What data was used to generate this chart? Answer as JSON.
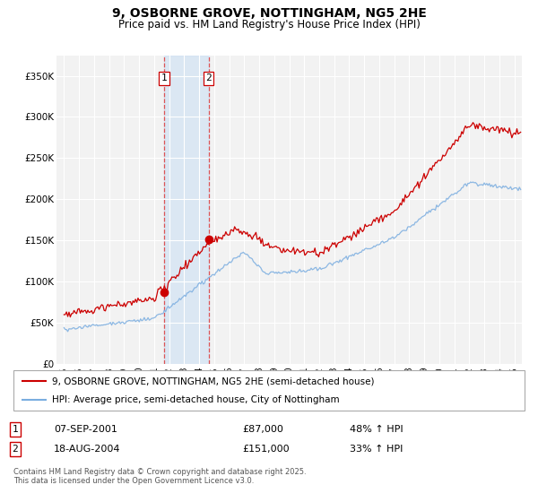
{
  "title": "9, OSBORNE GROVE, NOTTINGHAM, NG5 2HE",
  "subtitle": "Price paid vs. HM Land Registry's House Price Index (HPI)",
  "legend_line1": "9, OSBORNE GROVE, NOTTINGHAM, NG5 2HE (semi-detached house)",
  "legend_line2": "HPI: Average price, semi-detached house, City of Nottingham",
  "transaction1_label": "1",
  "transaction1_date": "07-SEP-2001",
  "transaction1_price": "£87,000",
  "transaction1_hpi": "48% ↑ HPI",
  "transaction2_label": "2",
  "transaction2_date": "18-AUG-2004",
  "transaction2_price": "£151,000",
  "transaction2_hpi": "33% ↑ HPI",
  "footer": "Contains HM Land Registry data © Crown copyright and database right 2025.\nThis data is licensed under the Open Government Licence v3.0.",
  "hpi_color": "#7aade0",
  "price_color": "#cc0000",
  "transaction1_x": 2001.67,
  "transaction1_y": 87000,
  "transaction2_x": 2004.63,
  "transaction2_y": 151000,
  "shaded_x1": 2001.67,
  "shaded_x2": 2004.63,
  "ylim": [
    0,
    375000
  ],
  "xlim_start": 1994.5,
  "xlim_end": 2025.5,
  "yticks": [
    0,
    50000,
    100000,
    150000,
    200000,
    250000,
    300000,
    350000
  ],
  "xticks": [
    1995,
    1996,
    1997,
    1998,
    1999,
    2000,
    2001,
    2002,
    2003,
    2004,
    2005,
    2006,
    2007,
    2008,
    2009,
    2010,
    2011,
    2012,
    2013,
    2014,
    2015,
    2016,
    2017,
    2018,
    2019,
    2020,
    2021,
    2022,
    2023,
    2024,
    2025
  ],
  "bg_color": "#f2f2f2",
  "grid_color": "#ffffff"
}
